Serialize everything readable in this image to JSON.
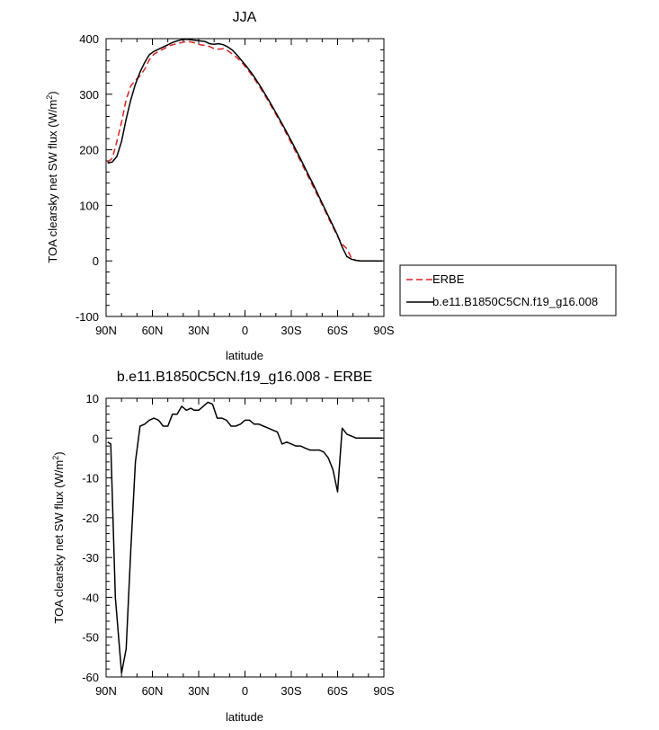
{
  "chart_data": [
    {
      "type": "line",
      "title": "JJA",
      "xlabel": "latitude",
      "ylabel": "TOA clearsky net SW flux (W/m²)",
      "ylabel_parts": {
        "main": "TOA clearsky net SW flux (W/m",
        "sup": "2",
        "end": ")"
      },
      "xlim": [
        90,
        -90
      ],
      "ylim": [
        -100,
        400
      ],
      "xticks": [
        {
          "value": 90,
          "label": "90N"
        },
        {
          "value": 60,
          "label": "60N"
        },
        {
          "value": 30,
          "label": "30N"
        },
        {
          "value": 0,
          "label": "0"
        },
        {
          "value": -30,
          "label": "30S"
        },
        {
          "value": -60,
          "label": "60S"
        },
        {
          "value": -90,
          "label": "90S"
        }
      ],
      "yticks": [
        {
          "value": 400,
          "label": "400"
        },
        {
          "value": 300,
          "label": "300"
        },
        {
          "value": 200,
          "label": "200"
        },
        {
          "value": 100,
          "label": "100"
        },
        {
          "value": 0,
          "label": "0"
        },
        {
          "value": -100,
          "label": "-100"
        }
      ],
      "legend": "right",
      "series": [
        {
          "name": "ERBE",
          "color": "#dd2222",
          "dash": true,
          "x": [
            89,
            86,
            83,
            80,
            77,
            74,
            71,
            68,
            65,
            62,
            59,
            56,
            53,
            50,
            47,
            44,
            41,
            38,
            35,
            32,
            29,
            26,
            23,
            20,
            17,
            14,
            11,
            8,
            5,
            2,
            -1,
            -4,
            -7,
            -10,
            -15,
            -20,
            -25,
            -30,
            -35,
            -40,
            -45,
            -50,
            -55,
            -60,
            -63,
            -66,
            -69,
            -72,
            -75,
            -80,
            -85,
            -89
          ],
          "y": [
            177,
            185,
            215,
            250,
            290,
            315,
            325,
            333,
            345,
            362,
            372,
            377,
            381,
            386,
            389,
            391,
            393,
            395,
            394,
            392,
            389,
            388,
            386,
            382,
            381,
            382,
            378,
            372,
            365,
            357,
            347,
            336,
            324,
            311,
            288,
            264,
            239,
            212,
            185,
            157,
            129,
            101,
            72,
            44,
            30,
            22,
            5,
            1,
            0,
            0,
            0,
            0
          ]
        },
        {
          "name": "b.e11.B1850C5CN.f19_g16.008",
          "color": "#000000",
          "dash": false,
          "x": [
            89,
            86,
            83,
            80,
            77,
            74,
            71,
            68,
            65,
            62,
            59,
            56,
            53,
            50,
            47,
            44,
            41,
            38,
            35,
            32,
            29,
            26,
            23,
            20,
            17,
            14,
            11,
            8,
            5,
            2,
            -1,
            -4,
            -7,
            -10,
            -15,
            -20,
            -25,
            -30,
            -35,
            -40,
            -45,
            -50,
            -55,
            -60,
            -63,
            -66,
            -69,
            -72,
            -75,
            -80,
            -85,
            -89
          ],
          "y": [
            176,
            178,
            188,
            215,
            255,
            290,
            318,
            340,
            357,
            371,
            377,
            381,
            385,
            389,
            393,
            396,
            398,
            399,
            398,
            397,
            396,
            395,
            391,
            390,
            391,
            389,
            385,
            379,
            370,
            360,
            350,
            339,
            327,
            314,
            291,
            267,
            242,
            216,
            189,
            161,
            133,
            104,
            75,
            46,
            25,
            8,
            3,
            1,
            0,
            0,
            0,
            0
          ]
        }
      ]
    },
    {
      "type": "line",
      "title": "b.e11.B1850C5CN.f19_g16.008 - ERBE",
      "xlabel": "latitude",
      "ylabel": "TOA clearsky net SW flux (W/m²)",
      "ylabel_parts": {
        "main": "TOA clearsky net SW flux (W/m",
        "sup": "2",
        "end": ")"
      },
      "xlim": [
        90,
        -90
      ],
      "ylim": [
        -60,
        10
      ],
      "xticks": [
        {
          "value": 90,
          "label": "90N"
        },
        {
          "value": 60,
          "label": "60N"
        },
        {
          "value": 30,
          "label": "30N"
        },
        {
          "value": 0,
          "label": "0"
        },
        {
          "value": -30,
          "label": "30S"
        },
        {
          "value": -60,
          "label": "60S"
        },
        {
          "value": -90,
          "label": "90S"
        }
      ],
      "yticks": [
        {
          "value": 10,
          "label": "10"
        },
        {
          "value": 0,
          "label": "0"
        },
        {
          "value": -10,
          "label": "-10"
        },
        {
          "value": -20,
          "label": "-20"
        },
        {
          "value": -30,
          "label": "-30"
        },
        {
          "value": -40,
          "label": "-40"
        },
        {
          "value": -50,
          "label": "-50"
        },
        {
          "value": -60,
          "label": "-60"
        }
      ],
      "series": [
        {
          "color": "#000000",
          "x": [
            89,
            87,
            84,
            80,
            77,
            74,
            71,
            68,
            65,
            62,
            59,
            56,
            53,
            50,
            47,
            44,
            41,
            38,
            35,
            33,
            30,
            27,
            24,
            21,
            18,
            15,
            12,
            9,
            6,
            3,
            0,
            -3,
            -6,
            -9,
            -12,
            -15,
            -18,
            -21,
            -24,
            -27,
            -30,
            -33,
            -36,
            -39,
            -42,
            -45,
            -48,
            -51,
            -54,
            -57,
            -60,
            -63,
            -66,
            -69,
            -72,
            -75,
            -78,
            -81,
            -84,
            -89
          ],
          "y": [
            -1,
            -1.5,
            -40,
            -59,
            -53,
            -28,
            -6,
            3,
            3.5,
            4.5,
            5,
            4.5,
            3,
            3,
            6,
            6,
            8,
            7,
            7.5,
            7,
            7,
            8,
            9,
            8.5,
            5,
            5,
            4.5,
            3,
            3,
            3.5,
            4.5,
            4.5,
            3.5,
            3.5,
            3,
            2.5,
            2,
            1.5,
            -1.5,
            -1,
            -1.5,
            -2,
            -2,
            -2.5,
            -3,
            -3,
            -3,
            -3.5,
            -5,
            -8,
            -13.5,
            2.5,
            1,
            0.5,
            0,
            0,
            0,
            0,
            0,
            0
          ]
        }
      ]
    }
  ]
}
